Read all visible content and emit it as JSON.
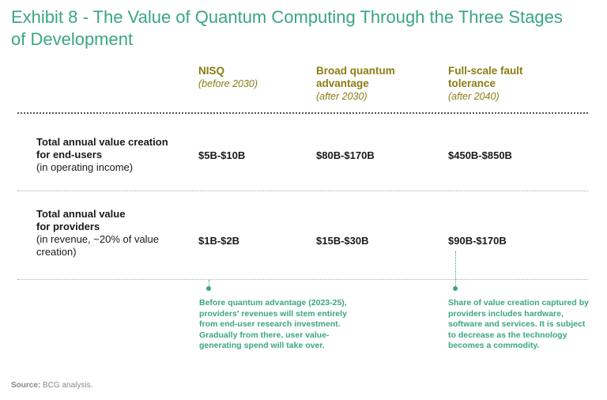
{
  "title": "Exhibit 8 - The Value of Quantum Computing Through the Three Stages of Development",
  "columns": [
    {
      "name": "NISQ",
      "sub": "(before 2030)"
    },
    {
      "name": "Broad quantum advantage",
      "sub": "(after 2030)"
    },
    {
      "name": "Full-scale fault tolerance",
      "sub": "(after 2040)"
    }
  ],
  "rows": [
    {
      "label_bold": "Total annual value creation for end-users",
      "label_note": "(in operating income)",
      "values": [
        "$5B-$10B",
        "$80B-$170B",
        "$450B-$850B"
      ]
    },
    {
      "label_bold": "Total annual value for providers",
      "label_note": "(in revenue, ~20% of value creation)",
      "values": [
        "$1B-$2B",
        "$15B-$30B",
        "$90B-$170B"
      ]
    }
  ],
  "callouts": [
    {
      "text": "Before quantum advantage (2023-25), providers' revenues will stem entirely from end-user research investment. Gradually from there, user value-generating spend will take over."
    },
    {
      "text": "Share of value creation captured by providers includes hardware, software and services. It is subject to decrease as the technology becomes a commodity."
    }
  ],
  "source": {
    "label": "Source:",
    "text": "BCG analysis."
  },
  "colors": {
    "title": "#3aa680",
    "column_header": "#8a7d12",
    "callout": "#3aa680"
  }
}
